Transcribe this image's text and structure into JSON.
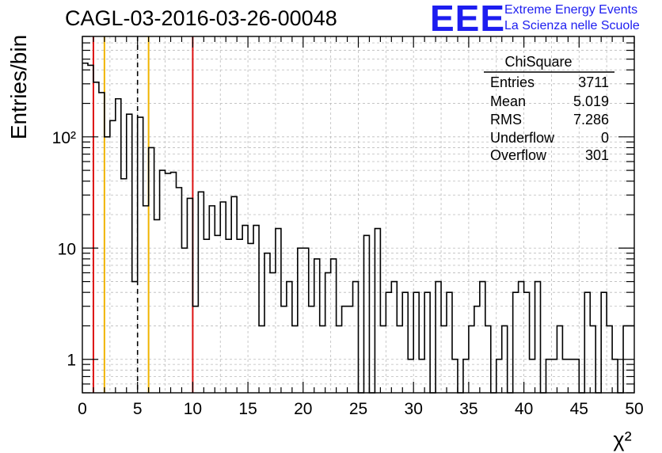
{
  "header": {
    "title": "CAGL-03-2016-03-26-00048",
    "logo_text": "EEE",
    "logo_line1": "Extreme Energy Events",
    "logo_line2": "La Scienza nelle Scuole"
  },
  "stats_box": {
    "title": "ChiSquare",
    "rows": [
      {
        "label": "Entries",
        "value": "3711"
      },
      {
        "label": "Mean",
        "value": "5.019"
      },
      {
        "label": "RMS",
        "value": "7.286"
      },
      {
        "label": "Underflow",
        "value": "0"
      },
      {
        "label": "Overflow",
        "value": "301"
      }
    ]
  },
  "colors": {
    "histogram": "#000000",
    "red_line": "#dd1111",
    "yellow_line": "#f0b400",
    "dashed_line": "#000000",
    "grid": "#bbbbbb",
    "logo": "#1d1df0"
  },
  "chart_data": {
    "type": "histogram",
    "xlabel": "χ²",
    "ylabel": "Entries/bin",
    "x_scale": "linear",
    "y_scale": "log",
    "xlim": [
      0,
      50
    ],
    "ylim": [
      0.5,
      800
    ],
    "grid": true,
    "bin_width": 0.5,
    "x_ticks": [
      "0",
      "5",
      "10",
      "15",
      "20",
      "25",
      "30",
      "35",
      "40",
      "45",
      "50"
    ],
    "y_ticks": [
      {
        "value": 1,
        "label": "1"
      },
      {
        "value": 10,
        "label": "10"
      },
      {
        "value": 100,
        "label": "10²"
      }
    ],
    "bin_values": [
      460,
      440,
      310,
      250,
      100,
      140,
      220,
      42,
      160,
      5,
      150,
      24,
      80,
      18,
      50,
      47,
      48,
      35,
      10,
      28,
      3,
      32,
      12,
      24,
      13,
      26,
      12,
      29,
      12,
      16,
      11,
      16,
      2,
      9,
      6,
      15,
      3,
      5,
      2,
      10,
      10,
      3,
      8,
      2,
      6,
      8,
      2,
      3,
      3,
      5,
      0.5,
      13,
      0.5,
      15,
      2,
      4,
      5,
      2,
      4,
      1,
      4,
      1,
      4,
      0.5,
      5,
      2,
      4,
      1,
      0.5,
      1,
      2,
      3,
      5,
      2,
      0.5,
      1,
      2,
      0.5,
      4,
      5,
      4,
      1,
      5,
      0.5,
      1,
      1,
      2,
      1,
      1,
      1,
      0.5,
      4,
      2,
      0.5,
      4,
      2,
      1,
      0.5,
      2,
      2
    ],
    "vertical_lines": [
      {
        "x": 1,
        "style": "red"
      },
      {
        "x": 2,
        "style": "yellow"
      },
      {
        "x": 5,
        "style": "dashed"
      },
      {
        "x": 6,
        "style": "yellow"
      },
      {
        "x": 10,
        "style": "red"
      }
    ]
  }
}
